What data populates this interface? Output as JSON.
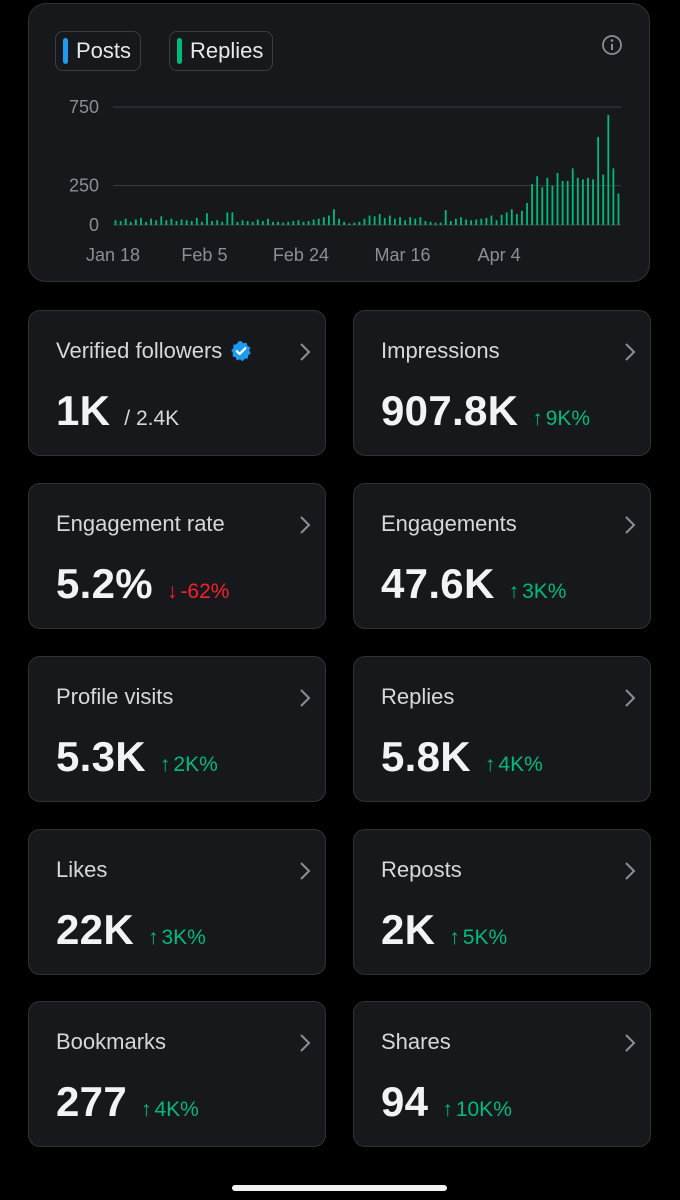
{
  "legend": {
    "posts_label": "Posts",
    "replies_label": "Replies",
    "posts_color": "#1d9bf0",
    "replies_color": "#00ba7c"
  },
  "info_icon": "info-circle-icon",
  "chart_data": {
    "type": "bar",
    "title": "",
    "xlabel": "",
    "ylabel": "",
    "ylim": [
      0,
      750
    ],
    "y_ticks": [
      "750",
      "250",
      "0"
    ],
    "y_tick_values": [
      750,
      250,
      0
    ],
    "x_tick_labels": [
      "Jan 18",
      "Feb 5",
      "Feb 24",
      "Mar 16",
      "Apr 4"
    ],
    "x_tick_indices": [
      0,
      18,
      37,
      57,
      76
    ],
    "series": [
      {
        "name": "Replies",
        "values": [
          30,
          25,
          40,
          20,
          35,
          45,
          20,
          40,
          30,
          55,
          30,
          40,
          25,
          35,
          30,
          25,
          45,
          20,
          75,
          25,
          30,
          20,
          80,
          80,
          20,
          30,
          25,
          20,
          35,
          25,
          40,
          20,
          20,
          15,
          20,
          25,
          30,
          20,
          25,
          35,
          40,
          50,
          60,
          100,
          40,
          20,
          10,
          15,
          20,
          40,
          60,
          55,
          70,
          45,
          60,
          40,
          50,
          30,
          50,
          40,
          50,
          25,
          20,
          15,
          15,
          95,
          25,
          40,
          50,
          35,
          30,
          35,
          40,
          45,
          60,
          30,
          65,
          80,
          100,
          70,
          90,
          140,
          260,
          310,
          240,
          300,
          250,
          330,
          280,
          280,
          360,
          300,
          290,
          300,
          290,
          560,
          320,
          700,
          360,
          200
        ]
      }
    ]
  },
  "cards": {
    "verified": {
      "label": "Verified followers",
      "value": "1K",
      "sub": "/ 2.4K"
    },
    "impressions": {
      "label": "Impressions",
      "value": "907.8K",
      "delta": "9K%"
    },
    "engagement_rate": {
      "label": "Engagement rate",
      "value": "5.2%",
      "delta": "-62%"
    },
    "engagements": {
      "label": "Engagements",
      "value": "47.6K",
      "delta": "3K%"
    },
    "profile_visits": {
      "label": "Profile visits",
      "value": "5.3K",
      "delta": "2K%"
    },
    "replies": {
      "label": "Replies",
      "value": "5.8K",
      "delta": "4K%"
    },
    "likes": {
      "label": "Likes",
      "value": "22K",
      "delta": "3K%"
    },
    "reposts": {
      "label": "Reposts",
      "value": "2K",
      "delta": "5K%"
    },
    "bookmarks": {
      "label": "Bookmarks",
      "value": "277",
      "delta": "4K%"
    },
    "shares": {
      "label": "Shares",
      "value": "94",
      "delta": "10K%"
    }
  },
  "colors": {
    "positive": "#00ba7c",
    "negative": "#f4212e",
    "verified_badge": "#1d9bf0"
  }
}
